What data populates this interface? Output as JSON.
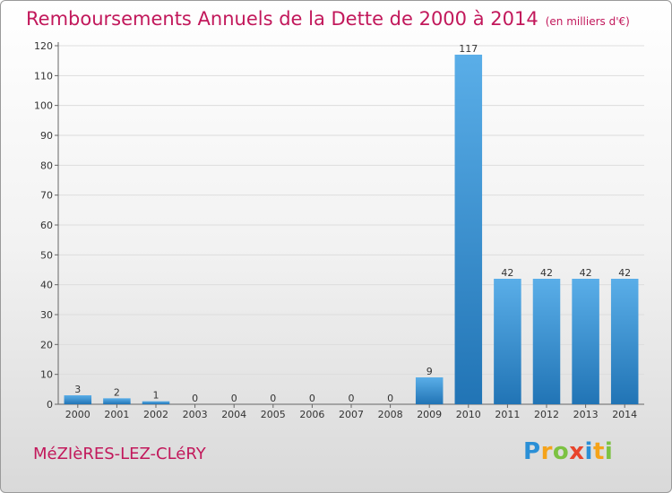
{
  "title": {
    "main": "Remboursements Annuels de la Dette de 2000 à 2014",
    "unit": "(en milliers d'€)"
  },
  "commune": "MéZIèRES-LEZ-CLéRY",
  "brand": {
    "text": "Proxiti",
    "letters": [
      {
        "char": "P",
        "color": "#2a8fd6"
      },
      {
        "char": "r",
        "color": "#f5a31a"
      },
      {
        "char": "o",
        "color": "#7cc242"
      },
      {
        "char": "x",
        "color": "#e8452c"
      },
      {
        "char": "i",
        "color": "#2a8fd6"
      },
      {
        "char": "t",
        "color": "#f5a31a"
      },
      {
        "char": "i",
        "color": "#7cc242"
      }
    ]
  },
  "colors": {
    "accent": "#c2185b",
    "bar_light": "#5aaee8",
    "bar_dark": "#2174b5",
    "grid": "#dddddd"
  },
  "chart_data": {
    "type": "bar",
    "categories": [
      "2000",
      "2001",
      "2002",
      "2003",
      "2004",
      "2005",
      "2006",
      "2007",
      "2008",
      "2009",
      "2010",
      "2011",
      "2012",
      "2013",
      "2014"
    ],
    "values": [
      3,
      2,
      1,
      0,
      0,
      0,
      0,
      0,
      0,
      9,
      117,
      42,
      42,
      42,
      42
    ],
    "ylim": [
      0,
      120
    ],
    "yticks": [
      0,
      10,
      20,
      30,
      40,
      50,
      60,
      70,
      80,
      90,
      100,
      110,
      120
    ],
    "grid": "horizontal",
    "data_labels": true
  }
}
